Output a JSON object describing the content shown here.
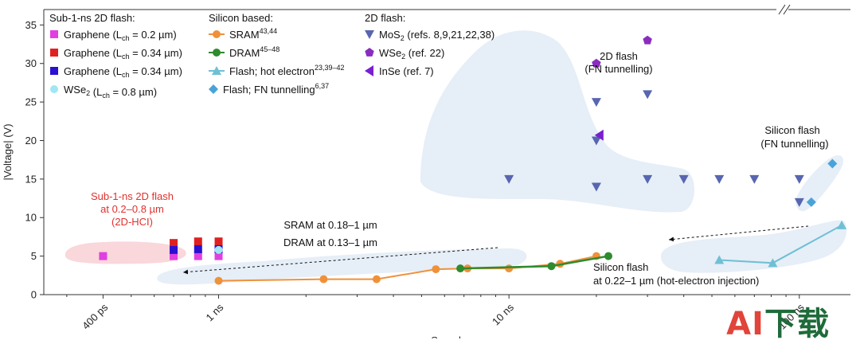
{
  "chart_data": {
    "type": "scatter",
    "title": "",
    "ylabel": "|Voltage| (V)",
    "xlabel": "Speed",
    "xscale": "log",
    "xlim_s": [
      2.5e-10,
      1.5e-07
    ],
    "ylim": [
      0,
      37
    ],
    "x_ticks": [
      {
        "value": 4e-10,
        "label": "400 ps"
      },
      {
        "value": 1e-09,
        "label": "1 ns"
      },
      {
        "value": 1e-08,
        "label": "10 ns"
      },
      {
        "value": 1e-07,
        "label": "100 ns"
      }
    ],
    "y_ticks": [
      0,
      5,
      10,
      15,
      20,
      25,
      30,
      35
    ],
    "legend_groups": [
      {
        "heading": "Sub-1-ns 2D flash:",
        "entries": [
          {
            "name": "Graphene",
            "name_suffix": " = 0.2 µm)",
            "color": "#e040e0",
            "marker": "square"
          },
          {
            "name": "Graphene",
            "name_suffix": " = 0.34 µm)",
            "color": "#e02020",
            "marker": "square"
          },
          {
            "name": "Graphene",
            "name_suffix": " = 0.34 µm)",
            "color": "#2a10d0",
            "marker": "square"
          },
          {
            "name": "WSe2",
            "name_suffix": " = 0.8 µm)",
            "color": "#9fe8f2",
            "marker": "circle"
          }
        ]
      },
      {
        "heading": "Silicon based:",
        "entries": [
          {
            "name": "SRAM",
            "sup": "43,44",
            "color": "#f0913a",
            "marker": "circle-line"
          },
          {
            "name": "DRAM",
            "sup": "45–48",
            "color": "#2e8b2e",
            "marker": "circle-line"
          },
          {
            "name": "Flash; hot electron",
            "sup": "23,39–42",
            "color": "#6fc0d4",
            "marker": "triangle-line"
          },
          {
            "name": "Flash; FN tunnelling",
            "sup": "6,37",
            "color": "#4aa3d8",
            "marker": "diamond"
          }
        ]
      },
      {
        "heading": "2D flash:",
        "entries": [
          {
            "name": "MoS2 (refs. 8,9,21,22,38)",
            "color": "#5866b0",
            "marker": "triangle-down"
          },
          {
            "name": "WSe2 (ref. 22)",
            "color": "#8a2dbf",
            "marker": "pentagon"
          },
          {
            "name": "InSe (ref. 7)",
            "color": "#7a1fd0",
            "marker": "triangle-left"
          }
        ]
      }
    ],
    "legend_lch_text": "(L",
    "legend_lch_sub": "ch",
    "series": [
      {
        "name": "Graphene (Lch = 0.2 µm)",
        "marker": "square",
        "color": "#e040e0",
        "points": [
          [
            4e-10,
            5.0
          ],
          [
            7e-10,
            5.0
          ],
          [
            8.5e-10,
            5.0
          ],
          [
            1e-09,
            5.0
          ]
        ]
      },
      {
        "name": "Graphene (Lch = 0.34 µm) red",
        "marker": "square",
        "color": "#e02020",
        "points": [
          [
            7e-10,
            6.7
          ],
          [
            8.5e-10,
            6.9
          ],
          [
            1e-09,
            6.9
          ]
        ]
      },
      {
        "name": "Graphene (Lch = 0.34 µm) blue",
        "marker": "square",
        "color": "#2a10d0",
        "points": [
          [
            7e-10,
            5.8
          ],
          [
            8.5e-10,
            5.9
          ],
          [
            1e-09,
            5.9
          ]
        ]
      },
      {
        "name": "WSe2 (Lch = 0.8 µm)",
        "marker": "circle",
        "color": "#9fe8f2",
        "points": [
          [
            1e-09,
            5.8
          ]
        ]
      },
      {
        "name": "SRAM",
        "marker": "circle-line",
        "color": "#f0913a",
        "points": [
          [
            1e-09,
            1.8
          ],
          [
            2.3e-09,
            2.0
          ],
          [
            3.5e-09,
            2.0
          ],
          [
            5.6e-09,
            3.3
          ],
          [
            7.2e-09,
            3.4
          ],
          [
            1e-08,
            3.4
          ],
          [
            1.5e-08,
            4.0
          ],
          [
            2e-08,
            5.0
          ]
        ]
      },
      {
        "name": "DRAM",
        "marker": "circle-line",
        "color": "#2e8b2e",
        "points": [
          [
            6.8e-09,
            3.4
          ],
          [
            1.4e-08,
            3.7
          ],
          [
            2.2e-08,
            5.0
          ]
        ]
      },
      {
        "name": "Flash; hot electron",
        "marker": "triangle-line",
        "color": "#6fc0d4",
        "points": [
          [
            5.3e-08,
            4.5
          ],
          [
            8.1e-08,
            4.1
          ],
          [
            1.4e-07,
            9.0
          ]
        ]
      },
      {
        "name": "Flash; FN tunnelling",
        "marker": "diamond",
        "color": "#4aa3d8",
        "points": [
          [
            1.1e-07,
            12.0
          ],
          [
            1.3e-07,
            17.0
          ]
        ]
      },
      {
        "name": "MoS2",
        "marker": "triangle-down",
        "color": "#5866b0",
        "points": [
          [
            1e-08,
            15.0
          ],
          [
            2e-08,
            14.0
          ],
          [
            2e-08,
            20.0
          ],
          [
            2e-08,
            25.0
          ],
          [
            3e-08,
            26.0
          ],
          [
            3e-08,
            15.0
          ],
          [
            4e-08,
            15.0
          ],
          [
            5.3e-08,
            15.0
          ],
          [
            7e-08,
            15.0
          ],
          [
            1e-07,
            15.0
          ],
          [
            1e-07,
            12.0
          ]
        ]
      },
      {
        "name": "WSe2",
        "marker": "pentagon",
        "color": "#8a2dbf",
        "points": [
          [
            2e-08,
            30.0
          ],
          [
            3e-08,
            33.0
          ]
        ]
      },
      {
        "name": "InSe",
        "marker": "triangle-left",
        "color": "#7a1fd0",
        "points": [
          [
            2.05e-08,
            20.7
          ]
        ]
      }
    ],
    "regions": [
      {
        "name": "sub1ns",
        "color": "#f9d7db",
        "text_lines": [
          "Sub-1-ns 2D flash",
          "at 0.2–0.8 µm",
          "(2D-HCI)"
        ]
      },
      {
        "name": "silicon-lines",
        "color": "#e6eef7",
        "text_lines": [
          "SRAM at 0.18–1 µm",
          "DRAM at 0.13–1 µm"
        ]
      },
      {
        "name": "2d-flash",
        "color": "#e6eef7",
        "text_lines": [
          "2D flash",
          "(FN tunnelling)"
        ]
      },
      {
        "name": "si-flash-fn",
        "color": "#e6eef7",
        "text_lines": [
          "Silicon flash",
          "(FN tunnelling)"
        ]
      },
      {
        "name": "si-flash-hot",
        "color": "#e6eef7",
        "text_lines": [
          "Silicon flash",
          "at 0.22–1 µm (hot-electron injection)"
        ]
      }
    ]
  },
  "watermark": {
    "a": "AI",
    "rest": "下载",
    "accent_color": "#e0443a",
    "text_color": "#1f6b3a"
  }
}
